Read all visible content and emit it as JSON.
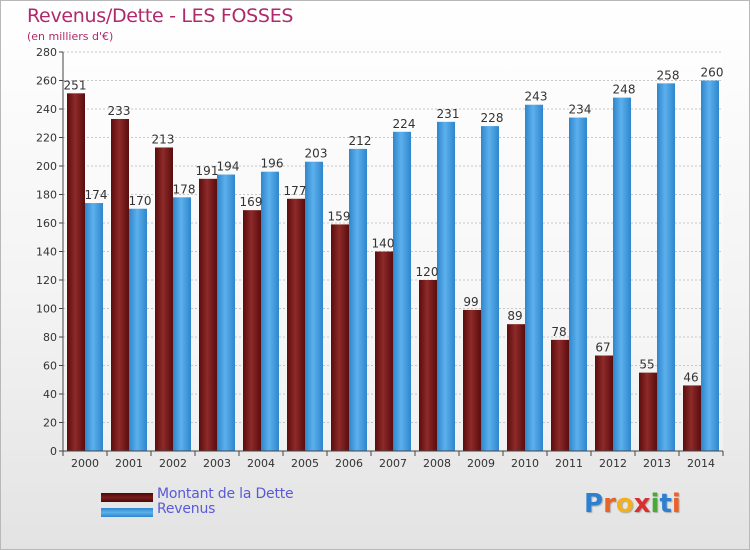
{
  "header": {
    "title": "Revenus/Dette - LES FOSSES",
    "subtitle": "(en milliers d'€)"
  },
  "chart_data": {
    "type": "bar",
    "title": "Revenus/Dette - LES FOSSES",
    "subtitle": "(en milliers d'€)",
    "categories": [
      "2000",
      "2001",
      "2002",
      "2003",
      "2004",
      "2005",
      "2006",
      "2007",
      "2008",
      "2009",
      "2010",
      "2011",
      "2012",
      "2013",
      "2014"
    ],
    "series": [
      {
        "name": "Montant de la Dette",
        "color": "#7a1c1c",
        "values": [
          251,
          233,
          213,
          191,
          169,
          177,
          159,
          140,
          120,
          99,
          89,
          78,
          67,
          55,
          46
        ]
      },
      {
        "name": "Revenus",
        "color": "#3b97db",
        "values": [
          174,
          170,
          178,
          194,
          196,
          203,
          212,
          224,
          231,
          228,
          243,
          234,
          248,
          258,
          260
        ]
      }
    ],
    "ylim": [
      0,
      280
    ],
    "yticks": [
      0,
      20,
      40,
      60,
      80,
      100,
      120,
      140,
      160,
      180,
      200,
      220,
      240,
      260,
      280
    ],
    "grid": true,
    "data_labels": true,
    "legend_position": "bottom-left"
  },
  "legend": {
    "items": [
      {
        "label": "Montant de la Dette",
        "color": "#6e1414"
      },
      {
        "label": "Revenus",
        "color": "#3b97db"
      }
    ]
  },
  "logo": {
    "letters": [
      "P",
      "r",
      "o",
      "x",
      "i",
      "t",
      "i"
    ],
    "colors": [
      "#2f7fd0",
      "#e8622a",
      "#f0b020",
      "#d83030",
      "#4aa83a",
      "#2f7fd0",
      "#e8622a"
    ]
  }
}
